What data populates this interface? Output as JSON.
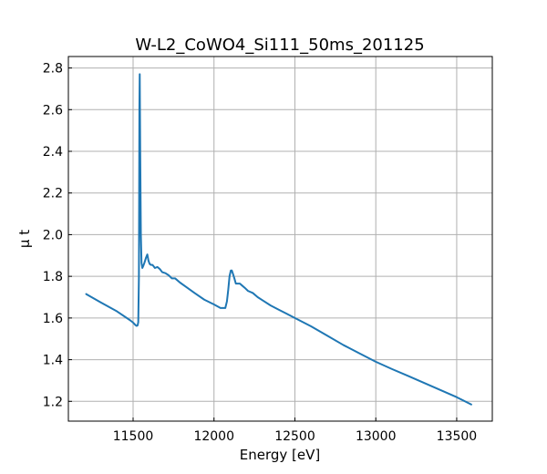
{
  "chart_data": {
    "type": "line",
    "title": "W-L2_CoWO4_Si111_50ms_201125",
    "xlabel": "Energy [eV]",
    "ylabel": "μ t",
    "xlim": [
      11100,
      13720
    ],
    "ylim": [
      1.105,
      2.855
    ],
    "xticks": [
      11500,
      12000,
      12500,
      13000,
      13500
    ],
    "yticks": [
      1.2,
      1.4,
      1.6,
      1.8,
      2.0,
      2.2,
      2.4,
      2.6,
      2.8
    ],
    "xtick_labels": [
      "11500",
      "12000",
      "12500",
      "13000",
      "13500"
    ],
    "ytick_labels": [
      "1.2",
      "1.4",
      "1.6",
      "1.8",
      "2.0",
      "2.2",
      "2.4",
      "2.6",
      "2.8"
    ],
    "grid": true,
    "legend": "none",
    "line_color": "#1f77b4",
    "series": [
      {
        "x": [
          11210,
          11300,
          11400,
          11480,
          11500,
          11515,
          11522,
          11528,
          11532,
          11536,
          11539,
          11541,
          11544,
          11548,
          11552,
          11557,
          11563,
          11570,
          11580,
          11588,
          11595,
          11602,
          11610,
          11620,
          11635,
          11650,
          11665,
          11680,
          11700,
          11720,
          11740,
          11760,
          11790,
          11830,
          11880,
          11940,
          12000,
          12040,
          12070,
          12080,
          12088,
          12096,
          12104,
          12110,
          12118,
          12126,
          12135,
          12145,
          12160,
          12175,
          12190,
          12210,
          12240,
          12270,
          12300,
          12350,
          12400,
          12450,
          12500,
          12600,
          12700,
          12800,
          12900,
          13000,
          13100,
          13200,
          13300,
          13400,
          13500,
          13590
        ],
        "y": [
          1.715,
          1.675,
          1.632,
          1.59,
          1.578,
          1.566,
          1.562,
          1.565,
          1.58,
          1.8,
          2.6,
          2.77,
          2.4,
          2.0,
          1.865,
          1.84,
          1.85,
          1.865,
          1.89,
          1.905,
          1.875,
          1.86,
          1.855,
          1.855,
          1.84,
          1.845,
          1.835,
          1.82,
          1.815,
          1.805,
          1.79,
          1.79,
          1.77,
          1.748,
          1.72,
          1.688,
          1.665,
          1.648,
          1.648,
          1.68,
          1.735,
          1.8,
          1.828,
          1.828,
          1.81,
          1.79,
          1.765,
          1.765,
          1.765,
          1.755,
          1.745,
          1.73,
          1.72,
          1.7,
          1.685,
          1.66,
          1.64,
          1.62,
          1.6,
          1.56,
          1.515,
          1.47,
          1.43,
          1.39,
          1.355,
          1.322,
          1.288,
          1.254,
          1.22,
          1.185
        ]
      }
    ]
  }
}
